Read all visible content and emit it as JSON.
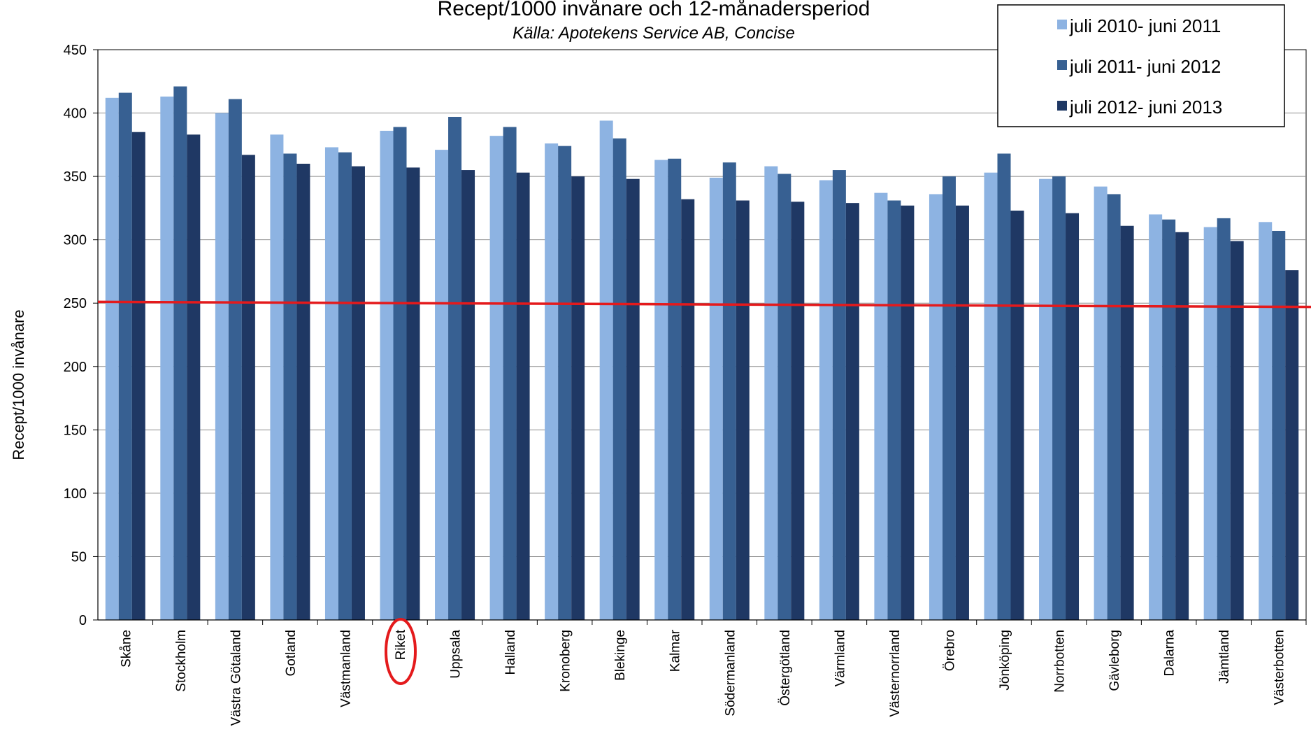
{
  "colors": {
    "series": [
      "#8DB3E2",
      "#376092",
      "#1F3864"
    ],
    "reference_line": "#E41A1C",
    "highlight_circle": "#E41A1C",
    "grid": "#8C8C8C"
  },
  "chart_data": {
    "type": "bar",
    "title": "Recept/1000 invånare och 12-månadersperiod",
    "subtitle": "Källa: Apotekens Service AB, Concise",
    "ylabel": "Recept/1000 invånare",
    "xlabel": "",
    "ylim": [
      0,
      450
    ],
    "yticks": [
      0,
      50,
      100,
      150,
      200,
      250,
      300,
      350,
      400,
      450
    ],
    "grid": true,
    "legend_position": "top-right",
    "highlighted_category": "Riket",
    "reference_line": {
      "start": 251,
      "end": 247
    },
    "categories": [
      "Skåne",
      "Stockholm",
      "Västra Götaland",
      "Gotland",
      "Västmanland",
      "Riket",
      "Uppsala",
      "Halland",
      "Kronoberg",
      "Blekinge",
      "Kalmar",
      "Södermanland",
      "Östergötland",
      "Värmland",
      "Västernorrland",
      "Örebro",
      "Jönköping",
      "Norrbotten",
      "Gävleborg",
      "Dalarna",
      "Jämtland",
      "Västerbotten"
    ],
    "series": [
      {
        "name": "juli 2010- juni 2011",
        "values": [
          412,
          413,
          400,
          383,
          373,
          386,
          371,
          382,
          376,
          394,
          363,
          349,
          358,
          347,
          337,
          336,
          353,
          348,
          342,
          320,
          310,
          314
        ]
      },
      {
        "name": "juli 2011- juni 2012",
        "values": [
          416,
          421,
          411,
          368,
          369,
          389,
          397,
          389,
          374,
          380,
          364,
          361,
          352,
          355,
          331,
          350,
          368,
          350,
          336,
          316,
          317,
          307
        ]
      },
      {
        "name": "juli 2012- juni 2013",
        "values": [
          385,
          383,
          367,
          360,
          358,
          357,
          355,
          353,
          350,
          348,
          332,
          331,
          330,
          329,
          327,
          327,
          323,
          321,
          311,
          306,
          299,
          276
        ]
      }
    ]
  }
}
